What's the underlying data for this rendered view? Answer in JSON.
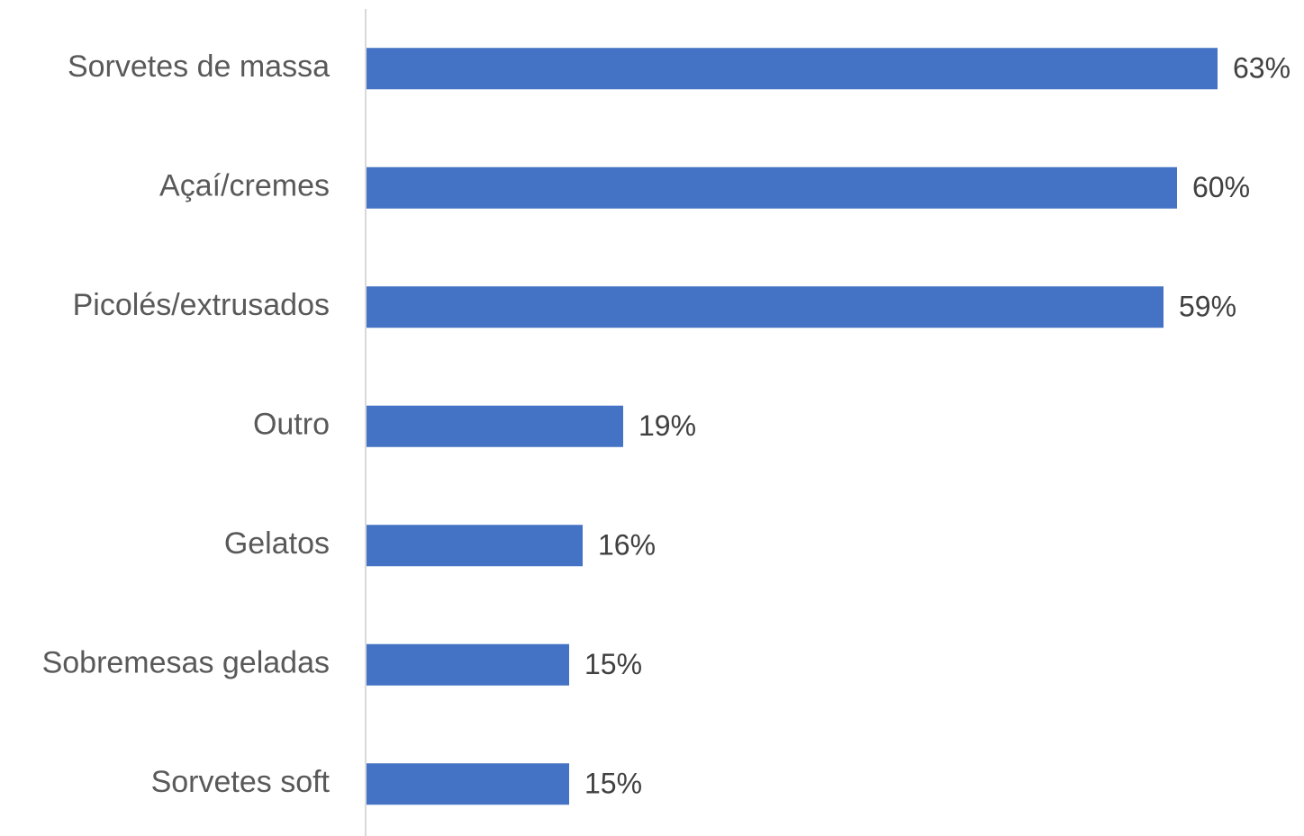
{
  "chart_data": {
    "type": "bar",
    "orientation": "horizontal",
    "categories": [
      "Sorvetes de massa",
      "Açaí/cremes",
      "Picolés/extrusados",
      "Outro",
      "Gelatos",
      "Sobremesas geladas",
      "Sorvetes soft"
    ],
    "values": [
      63,
      60,
      59,
      19,
      16,
      15,
      15
    ],
    "value_labels": [
      "63%",
      "60%",
      "59%",
      "19%",
      "16%",
      "15%",
      "15%"
    ],
    "color": "#4472c4"
  }
}
